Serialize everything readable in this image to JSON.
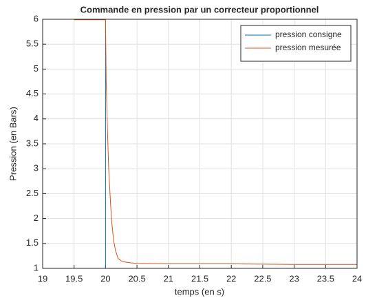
{
  "chart_data": {
    "type": "line",
    "title": "Commande en pression par un correcteur proportionnel",
    "xlabel": "temps (en s)",
    "ylabel": "Pression (en Bars)",
    "xlim": [
      19,
      24
    ],
    "xticks": [
      19,
      19.5,
      20,
      20.5,
      21,
      21.5,
      22,
      22.5,
      23,
      23.5,
      24
    ],
    "ylim": [
      1,
      6
    ],
    "yticks": [
      1,
      1.5,
      2,
      2.5,
      3,
      3.5,
      4,
      4.5,
      5,
      5.5,
      6
    ],
    "grid": true,
    "legend": "northeast",
    "series": [
      {
        "name": "pression consigne",
        "color": "#0072bd",
        "x": [
          19.5,
          20,
          20,
          24
        ],
        "values": [
          6,
          6,
          1,
          1
        ]
      },
      {
        "name": "pression mesurée",
        "color": "#d95319",
        "x": [
          19.5,
          20,
          20.01,
          20.03,
          20.05,
          20.08,
          20.1,
          20.13,
          20.16,
          20.2,
          20.25,
          20.3,
          20.4,
          20.5,
          21,
          22,
          23,
          24
        ],
        "values": [
          5.99,
          5.99,
          4.8,
          3.8,
          3.0,
          2.3,
          1.9,
          1.55,
          1.35,
          1.2,
          1.15,
          1.13,
          1.11,
          1.1,
          1.09,
          1.09,
          1.08,
          1.08
        ]
      }
    ]
  }
}
